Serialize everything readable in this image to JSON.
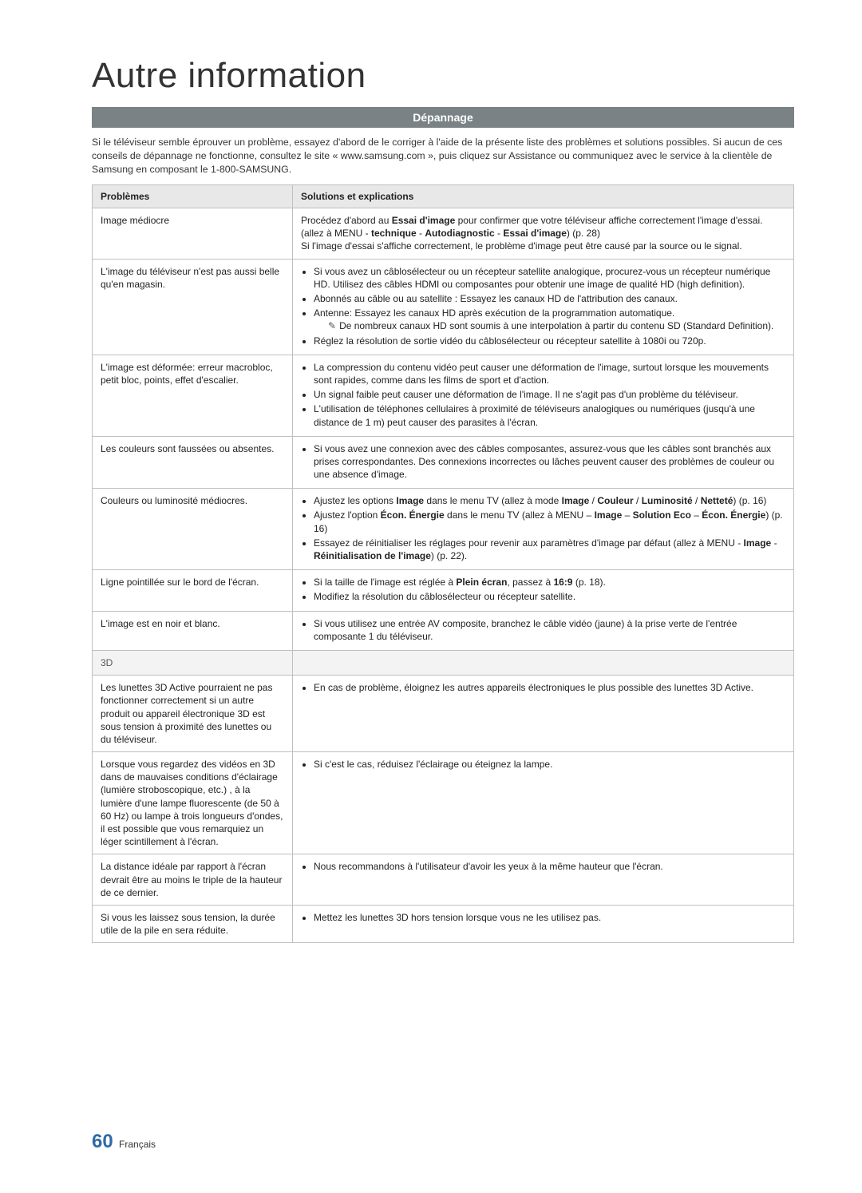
{
  "title": "Autre information",
  "ribbon": "Dépannage",
  "intro": "Si le téléviseur semble éprouver un problème, essayez d'abord de le corriger à l'aide de la présente liste des problèmes et solutions possibles. Si aucun de ces conseils de dépannage ne fonctionne, consultez le site « www.samsung.com », puis cliquez sur Assistance ou communiquez avec le service à la clientèle de Samsung en composant le 1-800-SAMSUNG.",
  "headers": {
    "problems": "Problèmes",
    "solutions": "Solutions et explications"
  },
  "rows": [
    {
      "problem": "Image médiocre",
      "solution_html": "Procédez d'abord au <b>Essai d'image</b> pour confirmer que votre téléviseur affiche correctement l'image d'essai. (allez à MENU - <b>technique</b> - <b>Autodiagnostic</b> - <b>Essai d'image</b>) (p. 28)<br>Si l'image d'essai s'affiche correctement, le problème d'image peut être causé par la source ou le signal."
    },
    {
      "problem": "L'image du téléviseur n'est pas aussi belle qu'en magasin.",
      "solution_html": "<ul class='sol'><li>Si vous avez un câblosélecteur ou un récepteur satellite analogique, procurez-vous un récepteur numérique HD. Utilisez des câbles HDMI ou composantes pour obtenir une image de qualité HD (high definition).</li><li>Abonnés au câble ou au satellite : Essayez les canaux HD de l'attribution des canaux.</li><li>Antenne: Essayez les canaux HD après exécution de la programmation automatique.<br><span class='indent-note'><span class='note-icon' data-name='note-icon' data-interactable='false'>✎</span>De nombreux canaux HD sont soumis à une interpolation à partir du contenu SD (Standard Definition).</span></li><li>Réglez la résolution de sortie vidéo du câblosélecteur ou récepteur satellite à 1080i ou 720p.</li></ul>"
    },
    {
      "problem": "L'image est déformée: erreur macrobloc, petit bloc, points, effet d'escalier.",
      "solution_html": "<ul class='sol'><li>La compression du contenu vidéo peut causer une déformation de l'image, surtout lorsque les mouvements sont rapides, comme dans les films de sport et d'action.</li><li>Un signal faible peut causer une déformation de l'image. Il ne s'agit pas d'un problème du téléviseur.</li><li>L'utilisation de téléphones cellulaires à proximité de téléviseurs analogiques ou numériques (jusqu'à une distance de 1 m) peut causer des parasites à l'écran.</li></ul>"
    },
    {
      "problem": "Les couleurs sont faussées ou absentes.",
      "solution_html": "<ul class='sol'><li>Si vous avez une connexion avec des câbles composantes, assurez-vous que les câbles sont branchés aux prises correspondantes. Des connexions incorrectes ou lâches peuvent causer des problèmes de couleur ou une absence d'image.</li></ul>"
    },
    {
      "problem": "Couleurs ou luminosité médiocres.",
      "solution_html": "<ul class='sol'><li>Ajustez les options <b>Image</b> dans le menu TV (allez à mode <b>Image</b> / <b>Couleur</b> / <b>Luminosité</b> / <b>Netteté</b>) (p. 16)</li><li>Ajustez l'option <b>Écon. Énergie</b> dans le menu TV (allez à MENU – <b>Image</b> – <b>Solution Eco</b> – <b>Écon. Énergie</b>) (p. 16)</li><li>Essayez de réinitialiser les réglages pour revenir aux paramètres d'image par défaut (allez à MENU - <b>Image</b> - <b>Réinitialisation de l'image</b>) (p. 22).</li></ul>"
    },
    {
      "problem": "Ligne pointillée sur le bord de l'écran.",
      "solution_html": "<ul class='sol'><li>Si la taille de l'image est réglée à <b>Plein écran</b>, passez à <b>16:9</b> (p. 18).</li><li>Modifiez la résolution du câblosélecteur ou récepteur satellite.</li></ul>"
    },
    {
      "problem": "L'image est en noir et blanc.",
      "solution_html": "<ul class='sol'><li>Si vous utilisez une entrée AV composite, branchez le câble vidéo (jaune) à la prise verte de l'entrée composante 1 du téléviseur.</li></ul>"
    },
    {
      "section": "3D"
    },
    {
      "problem": "Les lunettes 3D Active pourraient ne pas fonctionner correctement si un autre produit ou appareil électronique 3D est sous tension à proximité des lunettes ou du téléviseur.",
      "solution_html": "<ul class='sol'><li>En cas de problème, éloignez les autres appareils électroniques le plus possible des lunettes 3D Active.</li></ul>"
    },
    {
      "problem": "Lorsque vous regardez des vidéos en 3D dans de mauvaises conditions d'éclairage (lumière stroboscopique, etc.) , à la lumière d'une lampe fluorescente (de 50 à 60 Hz) ou lampe à trois longueurs d'ondes, il est possible que vous remarquiez un léger scintillement à l'écran.",
      "solution_html": "<ul class='sol'><li>Si c'est le cas, réduisez l'éclairage ou éteignez la lampe.</li></ul>"
    },
    {
      "problem": "La distance idéale par rapport à l'écran devrait être au moins le triple de la hauteur de ce dernier.",
      "solution_html": "<ul class='sol'><li>Nous recommandons à l'utilisateur d'avoir les yeux à la même hauteur que l'écran.</li></ul>"
    },
    {
      "problem": "Si vous les laissez sous tension, la durée utile de la pile en sera réduite.",
      "solution_html": "<ul class='sol'><li>Mettez les lunettes 3D hors tension lorsque vous ne les utilisez pas.</li></ul>"
    }
  ],
  "footer": {
    "page": "60",
    "lang": "Français"
  },
  "styles": {
    "ribbon_bg": "#7a8285",
    "header_bg": "#e8e8e8",
    "border_color": "#bfbfbf",
    "pgnum_color": "#2f6aa8"
  }
}
